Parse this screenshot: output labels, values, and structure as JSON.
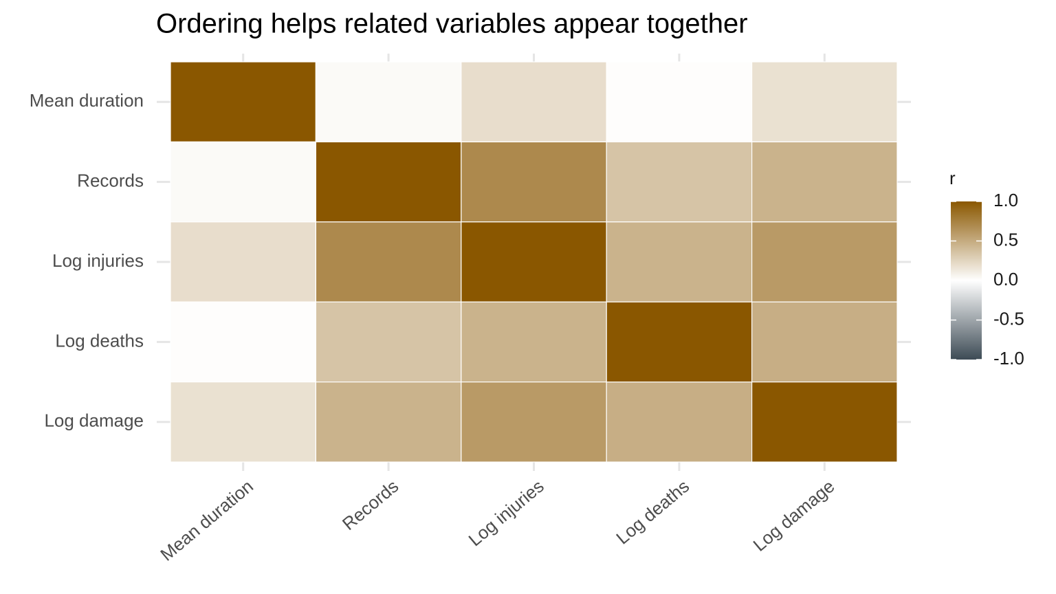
{
  "chart_data": {
    "type": "heatmap",
    "title": "Ordering helps related variables appear together",
    "x": [
      "Mean duration",
      "Records",
      "Log injuries",
      "Log deaths",
      "Log damage"
    ],
    "y": [
      "Mean duration",
      "Records",
      "Log injuries",
      "Log deaths",
      "Log damage"
    ],
    "values": [
      [
        1,
        0.03,
        0.2,
        0.01,
        0.18
      ],
      [
        0.03,
        1,
        0.7,
        0.35,
        0.45
      ],
      [
        0.2,
        0.7,
        1,
        0.45,
        0.6
      ],
      [
        0.01,
        0.35,
        0.45,
        1,
        0.48
      ],
      [
        0.18,
        0.45,
        0.6,
        0.48,
        1
      ]
    ],
    "legend_title": "r",
    "colorlim": [
      -1,
      1
    ],
    "colorticks": [
      {
        "value": 1,
        "label": "1.0"
      },
      0.5,
      {
        "value": 0,
        "label": "0.0"
      },
      -0.5,
      {
        "value": -1,
        "label": "-1.0"
      }
    ],
    "colors": {
      "low": "#3d4b55",
      "mid": "#ffffff",
      "high": "#8a5700"
    },
    "grid": true
  }
}
